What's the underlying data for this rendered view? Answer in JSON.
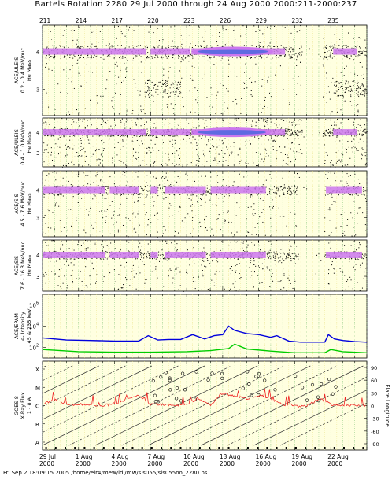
{
  "title": "Bartels Rotation 2280    29 Jul 2000 through 24 Aug 2000    2000:211-2000:237",
  "footer": "Fri Sep  2 18:09:15 2005    /home/elr4/mew/idl/mw/sis055/sis055oo_2280.ps",
  "doy_ticks": [
    "211",
    "214",
    "217",
    "220",
    "223",
    "226",
    "229",
    "232",
    "235"
  ],
  "date_ticks": [
    {
      "day": "29 Jul",
      "year": "2000"
    },
    {
      "day": "1 Aug",
      "year": "2000"
    },
    {
      "day": "4 Aug",
      "year": "2000"
    },
    {
      "day": "7 Aug",
      "year": "2000"
    },
    {
      "day": "10 Aug",
      "year": "2000"
    },
    {
      "day": "13 Aug",
      "year": "2000"
    },
    {
      "day": "16 Aug",
      "year": "2000"
    },
    {
      "day": "19 Aug",
      "year": "2000"
    },
    {
      "day": "22 Aug",
      "year": "2000"
    }
  ],
  "colors": {
    "background": "#ffffe0",
    "grid_yellow": "#e8e080",
    "grid_green": "#7cc070",
    "magenta": "#cc77ee",
    "blue_core": "#4466dd",
    "epam_blue": "#0000dd",
    "epam_green": "#00cc00",
    "xray_red": "#ee2222"
  },
  "chart_data": [
    {
      "type": "scatter",
      "panel": "ACE/ULEIS 0.2-0.4 MeV/nuc",
      "ylabel_lines": [
        "ACE/ULEIS",
        "0.2 - 0.4 MeV/nuc",
        "He Mass"
      ],
      "yticks": [
        "4",
        "3"
      ],
      "ylim": [
        2.3,
        4.7
      ],
      "band_mass": 4.0,
      "intense_days": [
        223.5,
        230.2
      ],
      "gaps_days": [
        232.6,
        234.3
      ],
      "mass3_cluster_days": [
        [
          219.5,
          222.5
        ],
        [
          235.2,
          238.0
        ]
      ]
    },
    {
      "type": "scatter",
      "panel": "ACE/ULEIS 0.4-1.0 MeV/nuc",
      "ylabel_lines": [
        "ACE/ULEIS",
        "0.4 - 1.0 MeV/nuc",
        "He Mass"
      ],
      "yticks": [
        "4",
        "3"
      ],
      "ylim": [
        2.3,
        4.7
      ],
      "band_mass": 4.0,
      "intense_days": [
        223.5,
        230.0
      ],
      "gaps_days": [
        232.6,
        234.3
      ]
    },
    {
      "type": "scatter",
      "panel": "ACE/SIS 4.5-7.6 MeV/nuc",
      "ylabel_lines": [
        "ACE/SIS",
        "4.5 - 7.6 MeV/nuc",
        "He Mass"
      ],
      "yticks": [
        "4",
        "3"
      ],
      "ylim": [
        2.3,
        4.7
      ],
      "band_mass": 4.0,
      "gaps_days": [
        232.3,
        234.5
      ]
    },
    {
      "type": "scatter",
      "panel": "ACE/SIS 7.6-16.3 MeV/nuc",
      "ylabel_lines": [
        "ACE/SIS",
        "7.6 - 16.3 MeV/nuc",
        "He Mass"
      ],
      "yticks": [
        "4",
        "3"
      ],
      "ylim": [
        2.3,
        4.7
      ],
      "band_mass": 4.0,
      "gaps_days": [
        232.3,
        234.5
      ]
    },
    {
      "type": "line",
      "panel": "ACE/EPAM e- Intensity",
      "ylabel_lines": [
        "ACE/EPAM",
        "e- Intensity",
        "45 & 235 keV"
      ],
      "yticks": [
        "10^6",
        "10^4",
        "10^2"
      ],
      "ylim_log10": [
        1,
        7
      ],
      "series": [
        {
          "name": "45 keV",
          "color": "#0000dd",
          "x": [
            211.0,
            213.0,
            215.0,
            217.0,
            219.0,
            219.8,
            220.6,
            221.5,
            222.5,
            223.5,
            224.5,
            225.3,
            226.0,
            226.5,
            227.0,
            228.0,
            229.0,
            230.0,
            230.5,
            231.5,
            232.5,
            233.5,
            234.5,
            234.8,
            235.3,
            236.0,
            237.0,
            238.0
          ],
          "y": [
            2.9,
            2.7,
            2.65,
            2.6,
            2.6,
            3.1,
            2.7,
            2.75,
            2.75,
            3.2,
            2.8,
            3.1,
            3.2,
            4.0,
            3.6,
            3.3,
            3.2,
            2.95,
            3.1,
            2.6,
            2.5,
            2.5,
            2.5,
            3.2,
            2.8,
            2.65,
            2.55,
            2.5
          ]
        },
        {
          "name": "235 keV",
          "color": "#00cc00",
          "x": [
            211.0,
            214.0,
            217.0,
            220.0,
            223.0,
            225.0,
            226.5,
            227.0,
            228.0,
            230.0,
            232.0,
            234.5,
            235.0,
            236.0,
            238.0
          ],
          "y": [
            1.8,
            1.6,
            1.55,
            1.55,
            1.6,
            1.7,
            1.9,
            2.3,
            1.85,
            1.65,
            1.5,
            1.5,
            1.8,
            1.6,
            1.5
          ]
        }
      ]
    },
    {
      "type": "line",
      "panel": "GOES-8 X-Ray Flux 1-8 A",
      "ylabel_lines": [
        "GOES-8",
        "X-Ray Flux",
        "1 - 8 A"
      ],
      "yticks_left": [
        "X",
        "M",
        "C",
        "B",
        "A"
      ],
      "yticks_right": [
        "90",
        "60",
        "30",
        "0",
        "-30",
        "-60",
        "-90"
      ],
      "right_label": "Flare Longitude",
      "series": [
        {
          "name": "X-ray flux",
          "color": "#ee2222",
          "x": [
            211,
            212,
            213,
            214,
            215,
            216,
            217,
            218,
            219,
            220,
            221,
            222,
            223,
            224,
            225,
            226,
            227,
            228,
            229,
            230,
            231,
            232,
            233,
            234,
            235,
            236,
            237,
            238
          ],
          "y": [
            "C1",
            "C2",
            "C1",
            "C1",
            "C1",
            "B9",
            "C1",
            "C2",
            "C3",
            "C1",
            "C1",
            "B9",
            "C1",
            "C2",
            "C1",
            "C4",
            "C3",
            "C2",
            "C3",
            "C2",
            "C1",
            "B8",
            "B8",
            "C2",
            "C1",
            "B9",
            "B9",
            "B8"
          ]
        }
      ]
    }
  ]
}
